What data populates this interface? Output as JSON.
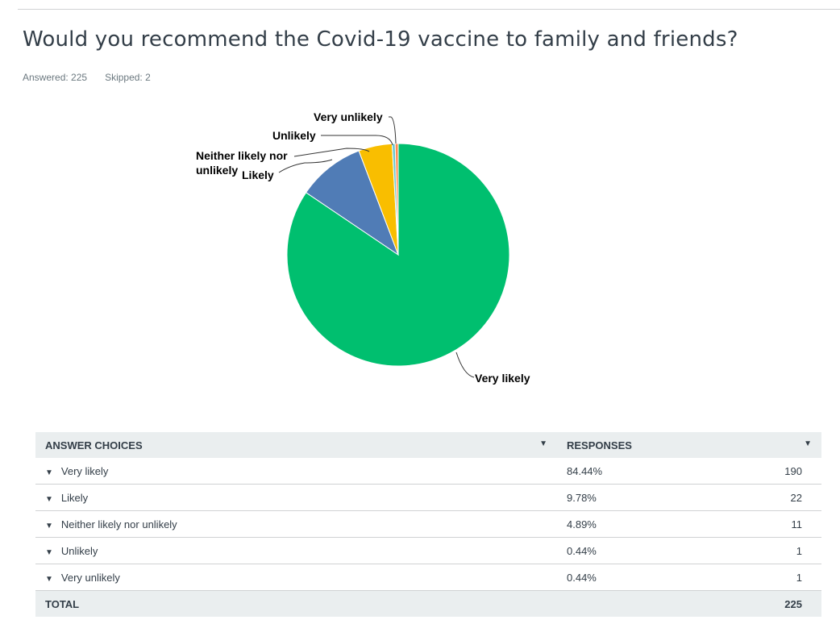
{
  "question": {
    "title": "Would you recommend the Covid-19 vaccine to family and friends?",
    "answered": "Answered: 225",
    "skipped": "Skipped: 2"
  },
  "chart_data": {
    "type": "pie",
    "title": "Would you recommend the Covid-19 vaccine to family and friends?",
    "start_angle_deg": 0,
    "direction": "clockwise",
    "slices": [
      {
        "label": "Very likely",
        "value": 84.44,
        "count": 190,
        "color": "#00bf6f"
      },
      {
        "label": "Likely",
        "value": 9.78,
        "count": 22,
        "color": "#507cb6"
      },
      {
        "label": "Neither likely nor unlikely",
        "value": 4.89,
        "count": 11,
        "color": "#f9be00"
      },
      {
        "label": "Unlikely",
        "value": 0.44,
        "count": 1,
        "color": "#6bc8cd"
      },
      {
        "label": "Very unlikely",
        "value": 0.44,
        "count": 1,
        "color": "#ff8b4f"
      }
    ],
    "callouts": {
      "very_likely": "Very likely",
      "likely": "Likely",
      "neither_line1": "Neither likely nor",
      "neither_line2": "unlikely",
      "unlikely": "Unlikely",
      "very_unlikely": "Very unlikely"
    },
    "legend": "none"
  },
  "table": {
    "headers": {
      "answer": "Answer Choices",
      "responses": "Responses"
    },
    "rows": [
      {
        "answer": "Very likely",
        "percent": "84.44%",
        "count": "190"
      },
      {
        "answer": "Likely",
        "percent": "9.78%",
        "count": "22"
      },
      {
        "answer": "Neither likely nor unlikely",
        "percent": "4.89%",
        "count": "11"
      },
      {
        "answer": "Unlikely",
        "percent": "0.44%",
        "count": "1"
      },
      {
        "answer": "Very unlikely",
        "percent": "0.44%",
        "count": "1"
      }
    ],
    "total": {
      "label": "Total",
      "count": "225"
    }
  },
  "icons": {
    "sort": "caret-down-icon",
    "expand": "caret-down-icon"
  }
}
